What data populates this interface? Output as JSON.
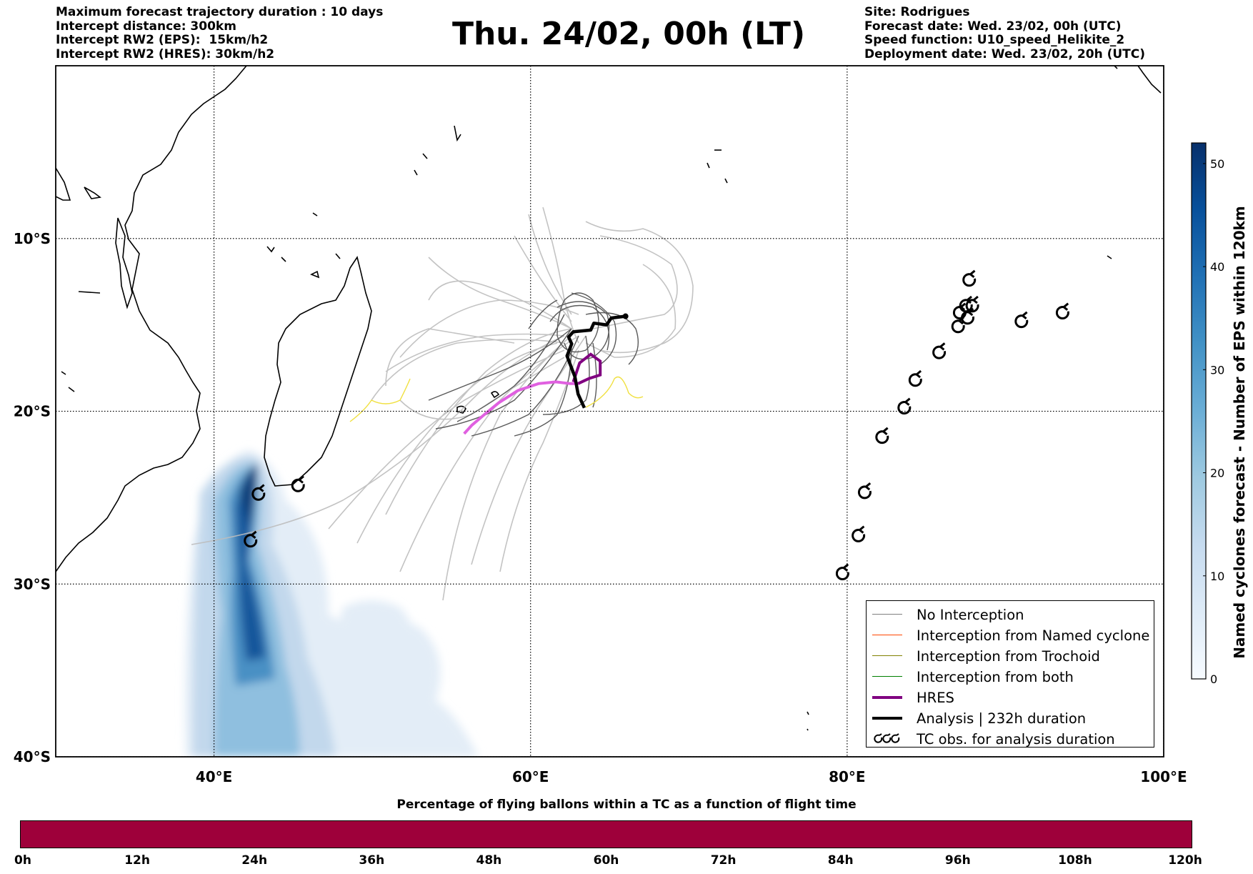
{
  "info_left": {
    "line1": "Maximum forecast trajectory duration : 10 days",
    "line2": "Intercept distance: 300km",
    "line3": "Intercept RW2 (EPS):  15km/h2",
    "line4": "Intercept RW2 (HRES): 30km/h2"
  },
  "title": "Thu. 24/02, 00h (LT)",
  "info_right": {
    "line1": "Site: Rodrigues",
    "line2": "Forecast date: Wed. 23/02, 00h (UTC)",
    "line3": "Speed function: U10_speed_Helikite_2",
    "line4": "Deployment date: Wed. 23/02, 20h (UTC)"
  },
  "map": {
    "lon_range": [
      30,
      100
    ],
    "lat_range": [
      -40,
      0
    ],
    "lon_ticks": [
      {
        "value": 40,
        "label": "40°E"
      },
      {
        "value": 60,
        "label": "60°E"
      },
      {
        "value": 80,
        "label": "80°E"
      },
      {
        "value": 100,
        "label": "100°E"
      }
    ],
    "lat_ticks": [
      {
        "value": -10,
        "label": "10°S"
      },
      {
        "value": -20,
        "label": "20°S"
      },
      {
        "value": -30,
        "label": "30°S"
      },
      {
        "value": -40,
        "label": "40°S"
      }
    ],
    "grid": "dotted",
    "tc_observations": [
      [
        87.7,
        -12.4
      ],
      [
        87.5,
        -13.9
      ],
      [
        87.9,
        -13.9
      ],
      [
        87.1,
        -14.3
      ],
      [
        87.6,
        -14.6
      ],
      [
        87.0,
        -15.1
      ],
      [
        91.0,
        -14.8
      ],
      [
        93.6,
        -14.3
      ],
      [
        85.8,
        -16.6
      ],
      [
        84.3,
        -18.2
      ],
      [
        83.6,
        -19.8
      ],
      [
        82.2,
        -21.5
      ],
      [
        81.1,
        -24.7
      ],
      [
        80.7,
        -27.2
      ],
      [
        79.7,
        -29.4
      ],
      [
        42.8,
        -24.8
      ],
      [
        45.3,
        -24.3
      ],
      [
        42.3,
        -27.5
      ]
    ],
    "analysis_track": [
      [
        66.0,
        -14.5
      ],
      [
        65.1,
        -14.6
      ],
      [
        64.8,
        -15.0
      ],
      [
        64.0,
        -14.9
      ],
      [
        63.8,
        -15.3
      ],
      [
        62.7,
        -15.4
      ],
      [
        62.4,
        -15.7
      ],
      [
        62.6,
        -16.1
      ],
      [
        62.3,
        -16.8
      ],
      [
        62.8,
        -18.0
      ],
      [
        63.0,
        -19.0
      ],
      [
        63.4,
        -19.8
      ]
    ],
    "hres_track": [
      [
        55.8,
        -21.3
      ],
      [
        56.3,
        -20.8
      ],
      [
        57.2,
        -20.1
      ],
      [
        58.0,
        -19.5
      ],
      [
        59.2,
        -18.8
      ],
      [
        60.5,
        -18.4
      ],
      [
        61.6,
        -18.3
      ],
      [
        62.5,
        -18.4
      ],
      [
        63.0,
        -18.4
      ],
      [
        63.7,
        -18.1
      ],
      [
        64.4,
        -17.9
      ],
      [
        64.4,
        -17.1
      ],
      [
        63.8,
        -16.7
      ],
      [
        63.1,
        -17.2
      ],
      [
        62.7,
        -18.3
      ]
    ]
  },
  "colorbar": {
    "label": "Named cyclones forecast - Number of EPS within 120km",
    "ticks": [
      0,
      10,
      20,
      30,
      40,
      50
    ],
    "max": 52,
    "colors": [
      "#f7fbff",
      "#deebf7",
      "#c6dbef",
      "#9ecae1",
      "#6baed6",
      "#4292c6",
      "#2171b5",
      "#08519c",
      "#08306b"
    ]
  },
  "legend": {
    "no_interception": "No Interception",
    "named_cyclone": "Interception from Named cyclone",
    "trochoid": "Interception from Trochoid",
    "both": "Interception from both",
    "hres": "HRES",
    "analysis": "Analysis | 232h duration",
    "tc_obs": "TC obs. for analysis duration",
    "colors": {
      "no_interception": "#808080",
      "named_cyclone": "#ff4500",
      "trochoid": "#808000",
      "both": "#008000",
      "hres": "#800080",
      "analysis": "#000000"
    }
  },
  "time_bar": {
    "title": "Percentage of flying ballons within a TC as a function of flight time",
    "labels": [
      "0h",
      "12h",
      "24h",
      "36h",
      "48h",
      "60h",
      "72h",
      "84h",
      "96h",
      "108h",
      "120h"
    ],
    "color": "#9e003a"
  }
}
